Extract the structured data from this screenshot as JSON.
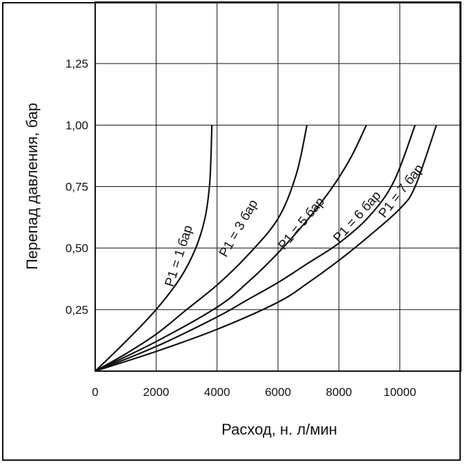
{
  "chart_data": {
    "type": "line",
    "title": "",
    "xlabel": "Расход, н. л/мин",
    "ylabel": "Перепад давления, бар",
    "xlim": [
      0,
      12000
    ],
    "ylim": [
      0,
      1.5
    ],
    "x_ticks": [
      0,
      2000,
      4000,
      6000,
      8000,
      10000
    ],
    "x_tick_labels": [
      "0",
      "2000",
      "4000",
      "6000",
      "8000",
      "10000"
    ],
    "y_ticks": [
      0.25,
      0.5,
      0.75,
      1.0,
      1.25
    ],
    "y_tick_labels": [
      "0,25",
      "0,50",
      "0,75",
      "1,00",
      "1,25"
    ],
    "x_grid": [
      0,
      2000,
      4000,
      6000,
      8000,
      10000,
      12000
    ],
    "y_grid": [
      0.25,
      0.5,
      0.75,
      1.0,
      1.25,
      1.5
    ],
    "grid": true,
    "series": [
      {
        "name": "P1 = 1 бар",
        "points": [
          [
            0,
            0
          ],
          [
            1000,
            0.12
          ],
          [
            2000,
            0.25
          ],
          [
            2800,
            0.38
          ],
          [
            3300,
            0.5
          ],
          [
            3600,
            0.62
          ],
          [
            3750,
            0.75
          ],
          [
            3800,
            0.87
          ],
          [
            3830,
            1.0
          ]
        ]
      },
      {
        "name": "P1 = 3 бар",
        "points": [
          [
            0,
            0
          ],
          [
            1000,
            0.07
          ],
          [
            2000,
            0.15
          ],
          [
            3000,
            0.25
          ],
          [
            4000,
            0.35
          ],
          [
            5000,
            0.47
          ],
          [
            6000,
            0.62
          ],
          [
            6600,
            0.8
          ],
          [
            6950,
            1.0
          ]
        ]
      },
      {
        "name": "P1 = 5 бар",
        "points": [
          [
            0,
            0
          ],
          [
            2000,
            0.12
          ],
          [
            4000,
            0.26
          ],
          [
            5000,
            0.36
          ],
          [
            6000,
            0.48
          ],
          [
            7000,
            0.62
          ],
          [
            7800,
            0.75
          ],
          [
            8400,
            0.87
          ],
          [
            8900,
            1.0
          ]
        ]
      },
      {
        "name": "P1 = 6 бар",
        "points": [
          [
            0,
            0
          ],
          [
            2000,
            0.1
          ],
          [
            4000,
            0.22
          ],
          [
            5000,
            0.29
          ],
          [
            6000,
            0.36
          ],
          [
            7000,
            0.44
          ],
          [
            8000,
            0.52
          ],
          [
            9000,
            0.63
          ],
          [
            9800,
            0.77
          ],
          [
            10500,
            1.0
          ]
        ]
      },
      {
        "name": "P1 = 7 бар",
        "points": [
          [
            0,
            0
          ],
          [
            2000,
            0.08
          ],
          [
            4000,
            0.17
          ],
          [
            6000,
            0.28
          ],
          [
            7000,
            0.36
          ],
          [
            8000,
            0.45
          ],
          [
            9000,
            0.55
          ],
          [
            10000,
            0.66
          ],
          [
            10500,
            0.75
          ],
          [
            11200,
            1.0
          ]
        ]
      }
    ],
    "curve_labels": [
      {
        "series": "P1 = 1 бар",
        "text": "P1 = 1 бар",
        "anchor_x": 2550,
        "anchor_y": 0.34,
        "angle": -72
      },
      {
        "series": "P1 = 3 бар",
        "text": "P1 = 3 бар",
        "anchor_x": 4300,
        "anchor_y": 0.46,
        "angle": -60
      },
      {
        "series": "P1 = 5 бар",
        "text": "P1 = 5 бар",
        "anchor_x": 6200,
        "anchor_y": 0.49,
        "angle": -50
      },
      {
        "series": "P1 = 6 бар",
        "text": "P1 = 6 бар",
        "anchor_x": 8000,
        "anchor_y": 0.52,
        "angle": -48
      },
      {
        "series": "P1 = 7 бар",
        "text": "P1 = 7 бар",
        "anchor_x": 9500,
        "anchor_y": 0.62,
        "angle": -52
      }
    ]
  }
}
